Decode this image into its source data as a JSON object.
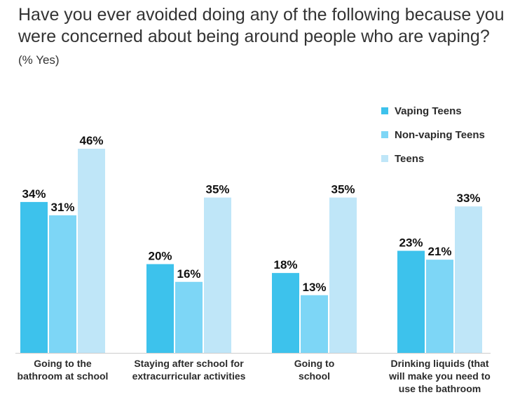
{
  "title": {
    "main": "Have you ever avoided doing any of the following because you were concerned about being around people who are vaping?",
    "suffix": "(% Yes)"
  },
  "chart_data": {
    "type": "bar",
    "categories": [
      [
        "Going to the",
        "bathroom at school"
      ],
      [
        "Staying after school for",
        "extracurricular activities"
      ],
      [
        "Going to",
        "school"
      ],
      [
        "Drinking liquids (that",
        "will make you need to",
        "use the bathroom"
      ]
    ],
    "series": [
      {
        "name": "Vaping Teens",
        "color": "#3dc2ec",
        "values": [
          34,
          20,
          18,
          23
        ],
        "labels": [
          "34%",
          "20%",
          "18%",
          "23%"
        ]
      },
      {
        "name": "Non-vaping Teens",
        "color": "#7dd6f6",
        "values": [
          31,
          16,
          13,
          21
        ],
        "labels": [
          "31%",
          "16%",
          "13%",
          "21%"
        ]
      },
      {
        "name": "Teens",
        "color": "#bfe6f8",
        "values": [
          46,
          35,
          35,
          33
        ],
        "labels": [
          "46%",
          "35%",
          "35%",
          "33%"
        ]
      }
    ],
    "ylim": [
      0,
      46
    ],
    "legend_position": "top-right",
    "unit": "%"
  }
}
